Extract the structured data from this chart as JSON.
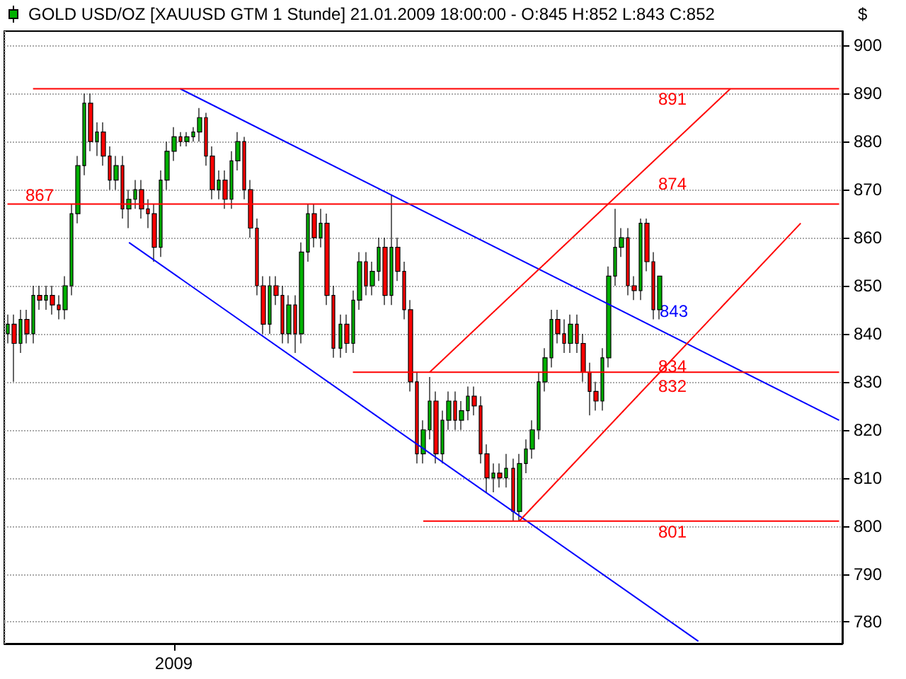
{
  "chart_data": {
    "type": "candlestick",
    "title": "GOLD USD/OZ [XAUUSD GTM  1 Stunde] 21.01.2009 18:00:00 - O:845 H:852 L:843 C:852",
    "ylabel": "$",
    "categories": [
      null,
      null,
      null,
      null,
      null,
      null,
      null,
      null,
      null,
      null,
      null,
      null,
      null,
      null,
      null,
      null,
      null,
      null,
      null,
      null,
      null,
      null,
      null,
      null,
      null,
      null,
      "2009",
      null,
      null,
      null,
      null,
      null,
      null,
      null,
      null,
      null,
      null,
      null,
      null,
      null,
      null,
      null,
      null,
      null,
      null,
      null,
      null,
      null,
      null,
      null,
      null,
      null,
      null,
      null,
      null,
      null,
      null,
      null,
      null,
      null,
      null,
      null,
      null,
      null,
      null,
      null,
      null,
      null,
      null,
      null,
      null,
      null,
      null,
      null,
      null,
      null,
      null,
      null,
      null,
      null,
      null,
      null,
      null,
      null,
      null,
      null,
      null,
      null,
      null,
      null,
      null,
      null,
      null,
      null,
      null,
      null,
      null,
      null,
      null,
      null,
      null,
      null,
      null,
      null,
      null,
      null,
      null,
      null,
      null,
      null,
      null,
      null,
      null,
      null,
      null,
      null,
      null,
      null,
      null,
      null,
      null,
      null,
      null,
      null,
      null,
      null,
      null,
      null,
      null,
      null,
      null
    ],
    "ylim": [
      775.5,
      903
    ],
    "yticks": [
      780,
      790,
      800,
      810,
      820,
      830,
      840,
      850,
      860,
      870,
      880,
      890,
      900
    ],
    "grid": true,
    "marker": "none",
    "line_style": "solid",
    "series": [
      {
        "ohlc": [
          [
            840,
            844,
            838,
            842
          ],
          [
            842,
            844,
            830,
            838
          ],
          [
            838,
            845,
            836,
            843
          ],
          [
            843,
            845,
            838,
            840
          ],
          [
            840,
            850,
            838,
            848
          ],
          [
            848,
            850,
            845,
            847
          ],
          [
            847,
            850,
            845,
            848
          ],
          [
            848,
            850,
            844,
            846
          ],
          [
            846,
            848,
            843,
            845
          ],
          [
            845,
            852,
            843,
            850
          ],
          [
            850,
            867,
            848,
            865
          ],
          [
            865,
            877,
            863,
            875
          ],
          [
            875,
            890,
            873,
            888
          ],
          [
            888,
            890,
            878,
            880
          ],
          [
            880,
            884,
            877,
            882
          ],
          [
            882,
            884,
            875,
            877
          ],
          [
            877,
            879,
            870,
            872
          ],
          [
            872,
            877,
            870,
            875
          ],
          [
            875,
            877,
            864,
            866
          ],
          [
            866,
            870,
            862,
            868
          ],
          [
            868,
            872,
            866,
            870
          ],
          [
            870,
            872,
            864,
            866
          ],
          [
            866,
            868,
            862,
            865
          ],
          [
            865,
            867,
            855,
            858
          ],
          [
            858,
            874,
            856,
            872
          ],
          [
            872,
            880,
            870,
            878
          ],
          [
            878,
            883,
            876,
            881
          ],
          [
            881,
            882,
            879,
            880
          ],
          [
            880,
            882,
            879,
            881
          ],
          [
            881,
            883,
            880,
            882
          ],
          [
            882,
            887,
            880,
            885
          ],
          [
            885,
            886,
            875,
            877
          ],
          [
            877,
            879,
            868,
            870
          ],
          [
            870,
            874,
            868,
            872
          ],
          [
            872,
            874,
            866,
            868
          ],
          [
            868,
            878,
            866,
            876
          ],
          [
            876,
            882,
            874,
            880
          ],
          [
            880,
            881,
            868,
            870
          ],
          [
            870,
            872,
            860,
            862
          ],
          [
            862,
            864,
            848,
            850
          ],
          [
            850,
            852,
            840,
            842
          ],
          [
            842,
            852,
            840,
            850
          ],
          [
            850,
            852,
            846,
            848
          ],
          [
            848,
            850,
            838,
            840
          ],
          [
            840,
            848,
            838,
            846
          ],
          [
            846,
            848,
            836,
            840
          ],
          [
            840,
            859,
            838,
            857
          ],
          [
            857,
            867,
            855,
            865
          ],
          [
            865,
            867,
            858,
            860
          ],
          [
            860,
            866,
            858,
            863
          ],
          [
            863,
            865,
            846,
            848
          ],
          [
            848,
            850,
            835,
            837
          ],
          [
            837,
            844,
            835,
            842
          ],
          [
            842,
            844,
            836,
            838
          ],
          [
            838,
            849,
            836,
            847
          ],
          [
            847,
            857,
            845,
            855
          ],
          [
            855,
            857,
            848,
            850
          ],
          [
            850,
            855,
            848,
            853
          ],
          [
            853,
            860,
            851,
            858
          ],
          [
            858,
            860,
            846,
            848
          ],
          [
            848,
            869,
            846,
            858
          ],
          [
            858,
            860,
            851,
            853
          ],
          [
            853,
            855,
            843,
            845
          ],
          [
            845,
            847,
            828,
            830
          ],
          [
            830,
            832,
            813,
            815
          ],
          [
            815,
            822,
            813,
            820
          ],
          [
            820,
            831,
            818,
            826
          ],
          [
            826,
            828,
            813,
            815
          ],
          [
            815,
            824,
            813,
            822
          ],
          [
            822,
            828,
            820,
            826
          ],
          [
            826,
            828,
            820,
            822
          ],
          [
            822,
            826,
            820,
            824
          ],
          [
            824,
            829,
            822,
            827
          ],
          [
            827,
            829,
            823,
            825
          ],
          [
            825,
            827,
            813,
            815
          ],
          [
            815,
            817,
            807,
            810
          ],
          [
            810,
            813,
            807,
            811
          ],
          [
            811,
            813,
            808,
            810
          ],
          [
            810,
            815,
            808,
            812
          ],
          [
            812,
            814,
            801,
            803
          ],
          [
            803,
            815,
            801,
            813
          ],
          [
            813,
            818,
            811,
            816
          ],
          [
            816,
            822,
            814,
            820
          ],
          [
            820,
            832,
            818,
            830
          ],
          [
            830,
            837,
            828,
            835
          ],
          [
            835,
            845,
            833,
            843
          ],
          [
            843,
            845,
            838,
            840
          ],
          [
            840,
            843,
            836,
            838
          ],
          [
            838,
            844,
            836,
            842
          ],
          [
            842,
            844,
            836,
            838
          ],
          [
            838,
            840,
            830,
            832
          ],
          [
            832,
            834,
            823,
            828
          ],
          [
            828,
            830,
            824,
            826
          ],
          [
            826,
            837,
            824,
            835
          ],
          [
            835,
            854,
            833,
            852
          ],
          [
            852,
            866,
            850,
            858
          ],
          [
            858,
            862,
            856,
            860
          ],
          [
            860,
            862,
            848,
            850
          ],
          [
            850,
            852,
            847,
            849
          ],
          [
            849,
            864,
            847,
            863
          ],
          [
            863,
            864,
            853,
            855
          ],
          [
            855,
            857,
            843,
            845
          ],
          [
            845,
            852,
            843,
            852
          ],
          null,
          null,
          null,
          null,
          null,
          null,
          null,
          null,
          null,
          null,
          null,
          null,
          null,
          null,
          null,
          null,
          null,
          null,
          null,
          null,
          null,
          null,
          null,
          null,
          null,
          null,
          null,
          null
        ],
        "colors": [
          "#00b000",
          "#ff0000",
          "#00b000",
          "#ff0000",
          "#00b000",
          "#ff0000",
          "#00b000",
          "#ff0000",
          "#ff0000",
          "#00b000",
          "#00b000",
          "#00b000",
          "#00b000",
          "#ff0000",
          "#00b000",
          "#ff0000",
          "#ff0000",
          "#00b000",
          "#ff0000",
          "#00b000",
          "#00b000",
          "#ff0000",
          "#ff0000",
          "#ff0000",
          "#00b000",
          "#00b000",
          "#00b000",
          "#ff0000",
          "#00b000",
          "#00b000",
          "#00b000",
          "#ff0000",
          "#ff0000",
          "#00b000",
          "#ff0000",
          "#00b000",
          "#00b000",
          "#ff0000",
          "#ff0000",
          "#ff0000",
          "#ff0000",
          "#00b000",
          "#ff0000",
          "#ff0000",
          "#00b000",
          "#ff0000",
          "#00b000",
          "#00b000",
          "#ff0000",
          "#00b000",
          "#ff0000",
          "#ff0000",
          "#00b000",
          "#ff0000",
          "#00b000",
          "#00b000",
          "#ff0000",
          "#00b000",
          "#00b000",
          "#ff0000",
          "#00b000",
          "#ff0000",
          "#ff0000",
          "#ff0000",
          "#ff0000",
          "#00b000",
          "#00b000",
          "#ff0000",
          "#00b000",
          "#00b000",
          "#ff0000",
          "#00b000",
          "#00b000",
          "#ff0000",
          "#ff0000",
          "#ff0000",
          "#00b000",
          "#ff0000",
          "#00b000",
          "#ff0000",
          "#00b000",
          "#00b000",
          "#00b000",
          "#00b000",
          "#00b000",
          "#00b000",
          "#ff0000",
          "#ff0000",
          "#00b000",
          "#ff0000",
          "#ff0000",
          "#ff0000",
          "#ff0000",
          "#00b000",
          "#00b000",
          "#00b000",
          "#00b000",
          "#ff0000",
          "#ff0000",
          "#00b000",
          "#ff0000",
          "#ff0000",
          "#00b000",
          null,
          null,
          null,
          null,
          null,
          null,
          null,
          null,
          null,
          null,
          null,
          null,
          null,
          null,
          null,
          null,
          null,
          null,
          null,
          null,
          null,
          null,
          null,
          null,
          null,
          null,
          null,
          null
        ]
      },
      {
        "type": "line",
        "color": "#0000ff",
        "values": [
          null,
          null,
          null,
          null,
          null,
          null,
          null,
          null,
          null,
          null,
          null,
          null,
          null,
          null,
          null,
          null,
          null,
          null,
          null,
          null,
          null,
          null,
          null,
          null,
          null,
          null,
          null,
          891,
          null,
          null,
          null,
          null,
          null,
          null,
          null,
          null,
          null,
          null,
          null,
          null,
          null,
          null,
          null,
          null,
          null,
          null,
          null,
          null,
          null,
          null,
          null,
          null,
          null,
          null,
          null,
          null,
          null,
          null,
          null,
          null,
          null,
          null,
          null,
          null,
          null,
          null,
          null,
          null,
          null,
          null,
          null,
          null,
          null,
          null,
          null,
          null,
          null,
          null,
          null,
          null,
          null,
          null,
          null,
          null,
          null,
          null,
          null,
          null,
          null,
          null,
          null,
          null,
          null,
          null,
          null,
          null,
          null,
          null,
          null,
          null,
          null,
          null,
          null,
          null,
          null,
          null,
          null,
          null,
          null,
          null,
          null,
          null,
          null,
          null,
          null,
          null,
          null,
          null,
          null,
          null,
          null,
          null,
          null,
          null,
          null,
          null,
          null,
          null,
          null,
          null,
          822
        ]
      },
      {
        "type": "line",
        "color": "#0000ff",
        "values": [
          null,
          null,
          null,
          null,
          null,
          null,
          null,
          null,
          null,
          null,
          null,
          null,
          null,
          null,
          null,
          null,
          null,
          null,
          null,
          859,
          null,
          null,
          null,
          null,
          null,
          null,
          null,
          null,
          null,
          null,
          null,
          null,
          null,
          null,
          null,
          null,
          null,
          null,
          null,
          null,
          null,
          null,
          null,
          null,
          null,
          null,
          null,
          null,
          null,
          null,
          null,
          null,
          null,
          null,
          null,
          null,
          null,
          null,
          null,
          null,
          null,
          null,
          null,
          null,
          null,
          null,
          null,
          null,
          null,
          null,
          null,
          null,
          null,
          null,
          null,
          null,
          null,
          null,
          null,
          null,
          null,
          null,
          null,
          null,
          null,
          null,
          null,
          null,
          null,
          null,
          null,
          null,
          null,
          null,
          null,
          null,
          null,
          null,
          null,
          null,
          null,
          null,
          null,
          null,
          null,
          null,
          null,
          null,
          776,
          null,
          null,
          null,
          null,
          null,
          null,
          null,
          null,
          null,
          null,
          null,
          null,
          null,
          null,
          null,
          null,
          null,
          null,
          null,
          null,
          null,
          null
        ]
      },
      {
        "type": "line",
        "color": "#ff0000",
        "values": [
          null,
          null,
          null,
          null,
          null,
          null,
          null,
          null,
          null,
          null,
          null,
          null,
          null,
          null,
          null,
          null,
          null,
          null,
          null,
          null,
          null,
          null,
          null,
          null,
          null,
          null,
          null,
          null,
          null,
          null,
          null,
          null,
          null,
          null,
          null,
          null,
          null,
          null,
          null,
          null,
          null,
          null,
          null,
          null,
          null,
          null,
          null,
          null,
          null,
          null,
          null,
          null,
          null,
          null,
          null,
          null,
          null,
          null,
          null,
          null,
          null,
          null,
          null,
          null,
          null,
          null,
          832,
          null,
          null,
          null,
          null,
          null,
          null,
          null,
          null,
          null,
          null,
          null,
          null,
          null,
          null,
          null,
          null,
          null,
          null,
          null,
          null,
          null,
          null,
          null,
          null,
          null,
          null,
          null,
          null,
          null,
          null,
          null,
          null,
          null,
          null,
          null,
          null,
          null,
          null,
          null,
          null,
          null,
          null,
          null,
          null,
          null,
          null,
          891,
          null,
          null,
          null,
          null,
          null,
          null,
          null,
          null,
          null,
          null,
          null,
          null,
          null,
          null,
          null,
          null,
          null
        ]
      },
      {
        "type": "line",
        "color": "#ff0000",
        "values": [
          null,
          null,
          null,
          null,
          null,
          null,
          null,
          null,
          null,
          null,
          null,
          null,
          null,
          null,
          null,
          null,
          null,
          null,
          null,
          null,
          null,
          null,
          null,
          null,
          null,
          null,
          null,
          null,
          null,
          null,
          null,
          null,
          null,
          null,
          null,
          null,
          null,
          null,
          null,
          null,
          null,
          null,
          null,
          null,
          null,
          null,
          null,
          null,
          null,
          null,
          null,
          null,
          null,
          null,
          null,
          null,
          null,
          null,
          null,
          null,
          null,
          null,
          null,
          null,
          null,
          null,
          null,
          null,
          null,
          null,
          null,
          null,
          null,
          null,
          null,
          null,
          null,
          null,
          null,
          null,
          801,
          null,
          null,
          null,
          null,
          null,
          null,
          null,
          null,
          null,
          null,
          null,
          null,
          null,
          null,
          null,
          null,
          null,
          null,
          null,
          null,
          null,
          null,
          null,
          null,
          null,
          null,
          null,
          null,
          null,
          null,
          null,
          null,
          null,
          null,
          null,
          null,
          null,
          null,
          null,
          null,
          null,
          null,
          null,
          863,
          null,
          null,
          null,
          null,
          null,
          null
        ]
      },
      {
        "type": "line",
        "color": "#ff0000",
        "values": [
          null,
          null,
          null,
          null,
          891,
          null,
          null,
          null,
          null,
          null,
          null,
          null,
          null,
          null,
          null,
          null,
          null,
          null,
          null,
          null,
          null,
          null,
          null,
          null,
          null,
          null,
          null,
          null,
          null,
          null,
          null,
          null,
          null,
          null,
          null,
          null,
          null,
          null,
          null,
          null,
          null,
          null,
          null,
          null,
          null,
          null,
          null,
          null,
          null,
          null,
          null,
          null,
          null,
          null,
          null,
          null,
          null,
          null,
          null,
          null,
          null,
          null,
          null,
          null,
          null,
          null,
          null,
          null,
          null,
          null,
          null,
          null,
          null,
          null,
          null,
          null,
          null,
          null,
          null,
          null,
          null,
          null,
          null,
          null,
          null,
          null,
          null,
          null,
          null,
          null,
          null,
          null,
          null,
          null,
          null,
          null,
          null,
          null,
          null,
          null,
          null,
          null,
          null,
          null,
          null,
          null,
          null,
          null,
          null,
          null,
          null,
          null,
          null,
          null,
          null,
          null,
          null,
          null,
          null,
          null,
          null,
          null,
          null,
          null,
          null,
          null,
          null,
          null,
          null,
          null,
          891
        ]
      },
      {
        "type": "line",
        "color": "#ff0000",
        "values": [
          867,
          null,
          null,
          null,
          null,
          null,
          null,
          null,
          null,
          null,
          null,
          null,
          null,
          null,
          null,
          null,
          null,
          null,
          null,
          null,
          null,
          null,
          null,
          null,
          null,
          null,
          null,
          null,
          null,
          null,
          null,
          null,
          null,
          null,
          null,
          null,
          null,
          null,
          null,
          null,
          null,
          null,
          null,
          null,
          null,
          null,
          null,
          null,
          null,
          null,
          null,
          null,
          null,
          null,
          null,
          null,
          null,
          null,
          null,
          null,
          null,
          null,
          null,
          null,
          null,
          null,
          null,
          null,
          null,
          null,
          null,
          null,
          null,
          null,
          null,
          null,
          null,
          null,
          null,
          null,
          null,
          null,
          null,
          null,
          null,
          null,
          null,
          null,
          null,
          null,
          null,
          null,
          null,
          null,
          null,
          null,
          null,
          null,
          null,
          null,
          null,
          null,
          null,
          null,
          null,
          null,
          null,
          null,
          null,
          null,
          null,
          null,
          null,
          null,
          null,
          null,
          null,
          null,
          null,
          null,
          null,
          null,
          null,
          null,
          null,
          null,
          null,
          null,
          null,
          null,
          867
        ]
      },
      {
        "type": "line",
        "color": "#ff0000",
        "values": [
          null,
          null,
          null,
          null,
          null,
          null,
          null,
          null,
          null,
          null,
          null,
          null,
          null,
          null,
          null,
          null,
          null,
          null,
          null,
          null,
          null,
          null,
          null,
          null,
          null,
          null,
          null,
          null,
          null,
          null,
          null,
          null,
          null,
          null,
          null,
          null,
          null,
          null,
          null,
          null,
          null,
          null,
          null,
          null,
          null,
          null,
          null,
          null,
          null,
          null,
          null,
          null,
          null,
          null,
          832,
          null,
          null,
          null,
          null,
          null,
          null,
          null,
          null,
          null,
          null,
          null,
          null,
          null,
          null,
          null,
          null,
          null,
          null,
          null,
          null,
          null,
          null,
          null,
          null,
          null,
          null,
          null,
          null,
          null,
          null,
          null,
          null,
          null,
          null,
          null,
          null,
          null,
          null,
          null,
          null,
          null,
          null,
          null,
          null,
          null,
          null,
          null,
          null,
          null,
          null,
          null,
          null,
          null,
          null,
          null,
          null,
          null,
          null,
          null,
          null,
          null,
          null,
          null,
          null,
          null,
          null,
          null,
          null,
          null,
          null,
          null,
          null,
          null,
          null,
          null,
          832
        ]
      },
      {
        "type": "line",
        "color": "#ff0000",
        "values": [
          null,
          null,
          null,
          null,
          null,
          null,
          null,
          null,
          null,
          null,
          null,
          null,
          null,
          null,
          null,
          null,
          null,
          null,
          null,
          null,
          null,
          null,
          null,
          null,
          null,
          null,
          null,
          null,
          null,
          null,
          null,
          null,
          null,
          null,
          null,
          null,
          null,
          null,
          null,
          null,
          null,
          null,
          null,
          null,
          null,
          null,
          null,
          null,
          null,
          null,
          null,
          null,
          null,
          null,
          null,
          null,
          null,
          null,
          null,
          null,
          null,
          null,
          null,
          null,
          null,
          801,
          null,
          null,
          null,
          null,
          null,
          null,
          null,
          null,
          null,
          null,
          null,
          null,
          null,
          null,
          null,
          null,
          null,
          null,
          null,
          null,
          null,
          null,
          null,
          null,
          null,
          null,
          null,
          null,
          null,
          null,
          null,
          null,
          null,
          null,
          null,
          null,
          null,
          null,
          null,
          null,
          null,
          null,
          null,
          null,
          null,
          null,
          null,
          null,
          null,
          null,
          null,
          null,
          null,
          null,
          null,
          null,
          null,
          null,
          null,
          null,
          null,
          null,
          null,
          null,
          801
        ]
      }
    ],
    "annotations": [
      "891",
      "867",
      "874",
      "843",
      "834",
      "832",
      "801"
    ]
  }
}
